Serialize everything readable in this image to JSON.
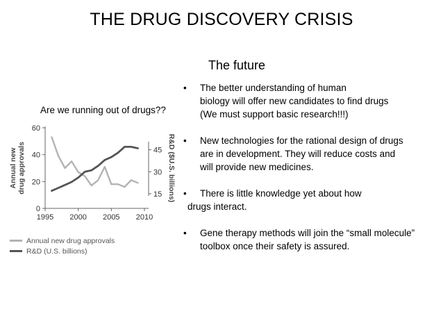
{
  "slide": {
    "title": "THE DRUG DISCOVERY CRISIS",
    "subtitle": "The future",
    "question": "Are we running out of drugs??"
  },
  "bullets": [
    {
      "lines": [
        "The better understanding of human",
        "biology will offer new candidates to find drugs",
        "(We must support basic research!!!)"
      ]
    },
    {
      "lines": [
        "New technologies for the rational design of drugs",
        "are in development. They will reduce costs and",
        "will provide new medicines."
      ]
    },
    {
      "lines": [
        "There is little knowledge yet about how",
        "drugs interact."
      ]
    },
    {
      "lines": [
        "Gene therapy methods will join the “small molecule”",
        "toolbox once their safety is assured."
      ]
    }
  ],
  "bullet_symbol": "•",
  "colors": {
    "approvals_line": "#b3b3b3",
    "rnd_line": "#555555",
    "axis": "#666666",
    "text": "#000000"
  },
  "chart_data": {
    "type": "line",
    "x_ticks": [
      "1995",
      "2000",
      "2005",
      "2010"
    ],
    "xlim": [
      1995,
      2010
    ],
    "left_axis": {
      "label": "Annual new drug approvals",
      "ticks": [
        "0",
        "20",
        "40",
        "60"
      ],
      "ylim": [
        0,
        60
      ]
    },
    "right_axis": {
      "label": "R&D ($U.S. billions)",
      "ticks": [
        "15",
        "30",
        "45"
      ],
      "ylim": [
        5,
        60
      ]
    },
    "series": [
      {
        "name": "Annual new drug approvals",
        "axis": "left",
        "x": [
          1996,
          1997,
          1998,
          1999,
          2000,
          2001,
          2002,
          2003,
          2004,
          2005,
          2006,
          2007,
          2008,
          2009
        ],
        "y": [
          53,
          39,
          30,
          35,
          27,
          24,
          17,
          21,
          31,
          18,
          18,
          16,
          21,
          19
        ]
      },
      {
        "name": "R&D (U.S. billions)",
        "axis": "right",
        "x": [
          1996,
          1997,
          1998,
          1999,
          2000,
          2001,
          2002,
          2003,
          2004,
          2005,
          2006,
          2007,
          2008,
          2009
        ],
        "y": [
          17,
          19,
          21,
          23,
          26,
          30,
          31,
          34,
          38,
          40,
          43,
          47,
          47,
          46
        ]
      }
    ],
    "legend": [
      {
        "label": "Annual new drug approvals"
      },
      {
        "label": "R&D (U.S. billions)"
      }
    ]
  }
}
